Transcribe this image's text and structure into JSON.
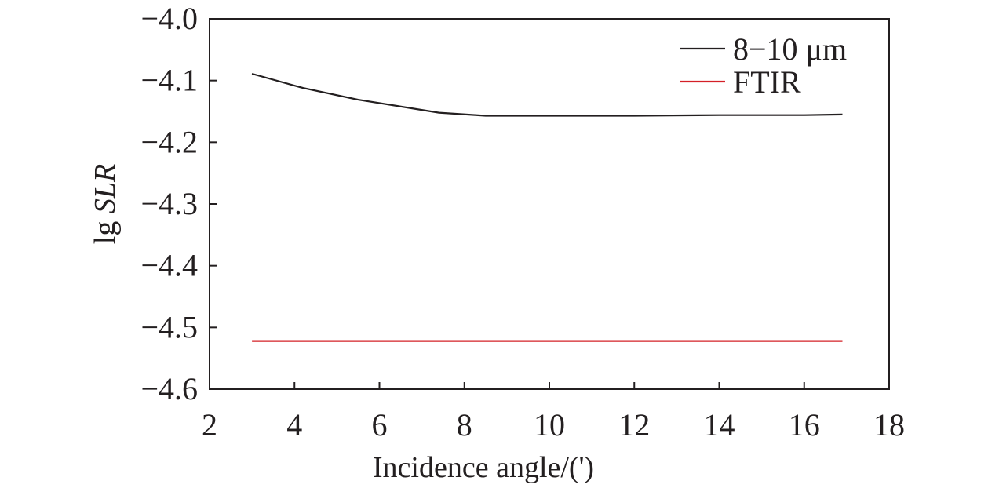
{
  "chart_data": {
    "type": "line",
    "xlabel": "Incidence angle/(')",
    "ylabel_prefix": "lg ",
    "ylabel_italic": "SLR",
    "xlim": [
      2,
      18
    ],
    "ylim": [
      -4.6,
      -4.0
    ],
    "x_ticks": [
      2,
      4,
      6,
      8,
      10,
      12,
      14,
      16,
      18
    ],
    "x_tick_labels": [
      "2",
      "4",
      "6",
      "8",
      "10",
      "12",
      "14",
      "16",
      "18"
    ],
    "y_ticks": [
      -4.0,
      -4.1,
      -4.2,
      -4.3,
      -4.4,
      -4.5,
      -4.6
    ],
    "y_tick_labels": [
      "−4.0",
      "−4.1",
      "−4.2",
      "−4.3",
      "−4.4",
      "−4.5",
      "−4.6"
    ],
    "grid": false,
    "legend_position": "top-right",
    "series": [
      {
        "name": "8−10 μm",
        "color": "#231f20",
        "x": [
          3,
          4.2,
          5.5,
          7.4,
          8.5,
          10,
          12,
          14,
          16,
          16.9
        ],
        "y": [
          -4.089,
          -4.112,
          -4.131,
          -4.152,
          -4.157,
          -4.157,
          -4.157,
          -4.156,
          -4.156,
          -4.155
        ]
      },
      {
        "name": "FTIR",
        "color": "#d42027",
        "x": [
          3,
          16.9
        ],
        "y": [
          -4.522,
          -4.522
        ]
      }
    ]
  }
}
